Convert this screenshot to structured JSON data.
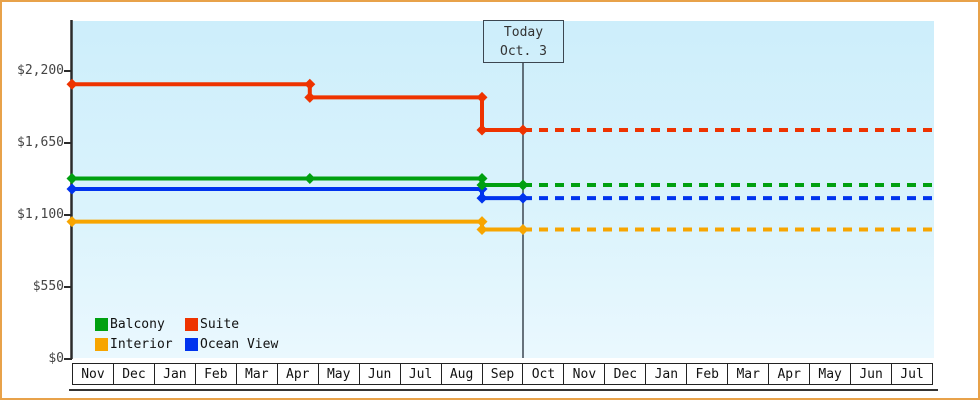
{
  "frame": {
    "background": "#ffffff",
    "border_color": "#e8a24a"
  },
  "chart_data": {
    "type": "line",
    "title": "",
    "today_marker": {
      "line1": "Today",
      "line2": "Oct. 3",
      "x": 11
    },
    "x_axis": {
      "months": [
        "Nov",
        "Dec",
        "Jan",
        "Feb",
        "Mar",
        "Apr",
        "May",
        "Jun",
        "Jul",
        "Aug",
        "Sep",
        "Oct",
        "Nov",
        "Dec",
        "Jan",
        "Feb",
        "Mar",
        "Apr",
        "May",
        "Jun",
        "Jul"
      ],
      "range": [
        0,
        21
      ]
    },
    "y_axis": {
      "ticks": [
        {
          "label": "$0",
          "value": 0
        },
        {
          "label": "$550",
          "value": 550
        },
        {
          "label": "$1,100",
          "value": 1100
        },
        {
          "label": "$1,650",
          "value": 1650
        },
        {
          "label": "$2,200",
          "value": 2200
        }
      ],
      "range": [
        0,
        2580
      ]
    },
    "series": [
      {
        "name": "Suite",
        "color": "#ee3300",
        "solid": [
          [
            0,
            2099
          ],
          [
            5.8,
            2099
          ],
          [
            5.8,
            1999
          ],
          [
            10,
            1999
          ],
          [
            10,
            1749
          ],
          [
            11,
            1749
          ]
        ],
        "dashed": [
          [
            11,
            1749
          ],
          [
            21,
            1749
          ]
        ],
        "markers": [
          [
            0,
            2099
          ],
          [
            5.8,
            2099
          ],
          [
            5.8,
            1999
          ],
          [
            10,
            1999
          ],
          [
            10,
            1749
          ],
          [
            11,
            1749
          ]
        ]
      },
      {
        "name": "Interior",
        "color": "#f7a500",
        "solid": [
          [
            0,
            1049
          ],
          [
            10,
            1049
          ],
          [
            10,
            989
          ],
          [
            11,
            989
          ]
        ],
        "dashed": [
          [
            11,
            989
          ],
          [
            21,
            989
          ]
        ],
        "markers": [
          [
            0,
            1049
          ],
          [
            10,
            1049
          ],
          [
            10,
            989
          ],
          [
            11,
            989
          ]
        ]
      },
      {
        "name": "Ocean View",
        "color": "#0033ee",
        "solid": [
          [
            0,
            1299
          ],
          [
            10,
            1299
          ],
          [
            10,
            1229
          ],
          [
            11,
            1229
          ]
        ],
        "dashed": [
          [
            11,
            1229
          ],
          [
            21,
            1229
          ]
        ],
        "markers": [
          [
            0,
            1299
          ],
          [
            10,
            1299
          ],
          [
            10,
            1229
          ],
          [
            11,
            1229
          ]
        ]
      },
      {
        "name": "Balcony",
        "color": "#00a010",
        "solid": [
          [
            0,
            1379
          ],
          [
            5.8,
            1379
          ],
          [
            10,
            1379
          ],
          [
            10,
            1329
          ],
          [
            11,
            1329
          ]
        ],
        "dashed": [
          [
            11,
            1329
          ],
          [
            21,
            1329
          ]
        ],
        "markers": [
          [
            0,
            1379
          ],
          [
            5.8,
            1379
          ],
          [
            10,
            1379
          ],
          [
            10,
            1329
          ],
          [
            11,
            1329
          ]
        ]
      }
    ],
    "legend": [
      {
        "label": "Balcony",
        "color": "#00a010"
      },
      {
        "label": "Suite",
        "color": "#ee3300"
      },
      {
        "label": "Interior",
        "color": "#f7a500"
      },
      {
        "label": "Ocean View",
        "color": "#0033ee"
      }
    ],
    "layout_hints": {
      "plot_bg_top": "#cdeefb",
      "plot_bg_bottom": "#eaf8fe",
      "axis_color": "#2b2b2b",
      "today_line_color": "#3c4650",
      "grid": "off",
      "legend_position": "bottom-left-inside"
    }
  }
}
